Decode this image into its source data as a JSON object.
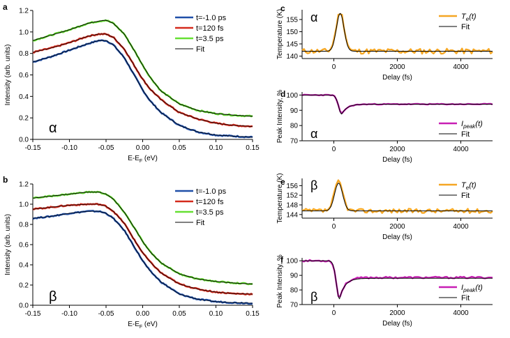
{
  "colors": {
    "blue": "#1f4fa8",
    "red": "#d42a1c",
    "green": "#66e032",
    "black": "#000000",
    "orange": "#f5a623",
    "magenta": "#c81fb4"
  },
  "chart_data": [
    {
      "panel": "a",
      "type": "line",
      "greek": "α",
      "xlabel": "E-EF (eV)",
      "xlabel_main": "E-E",
      "xlabel_sub": "F",
      "xlabel_tail": " (eV)",
      "ylabel": "Intensity (arb. units)",
      "xlim": [
        -0.15,
        0.15
      ],
      "ylim": [
        0,
        1.2
      ],
      "xticks": [
        -0.15,
        -0.1,
        -0.05,
        0.0,
        0.05,
        0.1,
        0.15
      ],
      "xticklabels": [
        "-0.15",
        "-0.10",
        "-0.05",
        "0.00",
        "0.05",
        "0.10",
        "0.15"
      ],
      "yticks": [
        0,
        0.2,
        0.4,
        0.6,
        0.8,
        1.0,
        1.2
      ],
      "yticklabels": [
        "0.0",
        "0.2",
        "0.4",
        "0.6",
        "0.8",
        "1.0",
        "1.2"
      ],
      "legend": [
        "t=-1.0 ps",
        "t=120 fs",
        "t=3.5 ps",
        "Fit"
      ],
      "legend_placement": "top-right",
      "x": [
        -0.15,
        -0.125,
        -0.1,
        -0.075,
        -0.06,
        -0.05,
        -0.04,
        -0.025,
        -0.01,
        0,
        0.01,
        0.025,
        0.05,
        0.075,
        0.1,
        0.125,
        0.15
      ],
      "series": [
        {
          "name": "t=-1.0 ps",
          "color": "blue",
          "values": [
            0.72,
            0.77,
            0.83,
            0.89,
            0.92,
            0.92,
            0.88,
            0.76,
            0.58,
            0.46,
            0.36,
            0.25,
            0.13,
            0.07,
            0.04,
            0.03,
            0.02
          ]
        },
        {
          "name": "t=120 fs",
          "color": "red",
          "values": [
            0.81,
            0.85,
            0.9,
            0.96,
            0.98,
            0.98,
            0.95,
            0.84,
            0.67,
            0.56,
            0.47,
            0.37,
            0.25,
            0.19,
            0.15,
            0.13,
            0.12
          ]
        },
        {
          "name": "t=3.5 ps",
          "color": "green",
          "values": [
            0.92,
            0.97,
            1.02,
            1.08,
            1.1,
            1.11,
            1.08,
            0.98,
            0.81,
            0.69,
            0.58,
            0.45,
            0.33,
            0.27,
            0.24,
            0.225,
            0.215
          ]
        },
        {
          "name": "Fit",
          "color": "black",
          "values": [
            0.92,
            0.97,
            1.02,
            1.08,
            1.1,
            1.11,
            1.08,
            0.98,
            0.81,
            0.69,
            0.58,
            0.45,
            0.33,
            0.27,
            0.24,
            0.225,
            0.215
          ]
        }
      ]
    },
    {
      "panel": "b",
      "type": "line",
      "greek": "β",
      "xlabel": "E-EF (eV)",
      "xlabel_main": "E-E",
      "xlabel_sub": "F",
      "xlabel_tail": " (eV)",
      "ylabel": "Intensity (arb. units)",
      "xlim": [
        -0.15,
        0.15
      ],
      "ylim": [
        0,
        1.2
      ],
      "xticks": [
        -0.15,
        -0.1,
        -0.05,
        0.0,
        0.05,
        0.1,
        0.15
      ],
      "xticklabels": [
        "-0.15",
        "-0.10",
        "-0.05",
        "0.00",
        "0.05",
        "0.10",
        "0.15"
      ],
      "yticks": [
        0,
        0.2,
        0.4,
        0.6,
        0.8,
        1.0,
        1.2
      ],
      "yticklabels": [
        "0.0",
        "0.2",
        "0.4",
        "0.6",
        "0.8",
        "1.0",
        "1.2"
      ],
      "legend": [
        "t=-1.0 ps",
        "t=120 fs",
        "t=3.5 ps",
        "Fit"
      ],
      "legend_placement": "top-right",
      "x": [
        -0.15,
        -0.125,
        -0.1,
        -0.075,
        -0.06,
        -0.05,
        -0.04,
        -0.025,
        -0.01,
        0,
        0.01,
        0.025,
        0.05,
        0.075,
        0.1,
        0.125,
        0.15
      ],
      "series": [
        {
          "name": "t=-1.0 ps",
          "color": "blue",
          "values": [
            0.86,
            0.88,
            0.91,
            0.93,
            0.93,
            0.91,
            0.86,
            0.74,
            0.56,
            0.44,
            0.34,
            0.23,
            0.11,
            0.06,
            0.035,
            0.025,
            0.02
          ]
        },
        {
          "name": "t=120 fs",
          "color": "red",
          "values": [
            0.95,
            0.97,
            0.99,
            1.0,
            1.0,
            0.98,
            0.93,
            0.81,
            0.63,
            0.52,
            0.43,
            0.32,
            0.21,
            0.16,
            0.13,
            0.115,
            0.11
          ]
        },
        {
          "name": "t=3.5 ps",
          "color": "green",
          "values": [
            1.06,
            1.08,
            1.1,
            1.12,
            1.12,
            1.1,
            1.05,
            0.92,
            0.75,
            0.63,
            0.53,
            0.42,
            0.31,
            0.26,
            0.235,
            0.22,
            0.21
          ]
        },
        {
          "name": "Fit",
          "color": "black",
          "values": [
            1.06,
            1.08,
            1.1,
            1.12,
            1.12,
            1.1,
            1.05,
            0.92,
            0.75,
            0.63,
            0.53,
            0.42,
            0.31,
            0.26,
            0.235,
            0.22,
            0.21
          ]
        }
      ]
    },
    {
      "panel": "c",
      "type": "line",
      "greek": "α",
      "xlabel": "Delay (fs)",
      "ylabel": "Temperature (K)",
      "xlim": [
        -1000,
        5000
      ],
      "ylim": [
        139,
        159
      ],
      "xticks": [
        0,
        2000,
        4000
      ],
      "xticklabels": [
        "0",
        "2000",
        "4000"
      ],
      "yticks": [
        140,
        145,
        150,
        155
      ],
      "yticklabels": [
        "140",
        "145",
        "150",
        "155"
      ],
      "legend": [
        "Te(t)",
        "Fit"
      ],
      "legend_main": "T",
      "legend_sub": "e",
      "legend_tail": "(t)",
      "legend_placement": "top-right",
      "data": {
        "color": "orange",
        "baseline": 142,
        "peak": 158,
        "peak_at": 200,
        "width": 180,
        "noise": 1.1,
        "seed": 11
      },
      "fit": {
        "color": "black",
        "baseline": 142,
        "peak": 157.5,
        "peak_at": 200,
        "width": 170
      }
    },
    {
      "panel": "d",
      "type": "line",
      "greek": "α",
      "xlabel": "Delay (fs)",
      "ylabel": "Peak Intensity, %",
      "xlim": [
        -1000,
        5000
      ],
      "ylim": [
        70,
        102
      ],
      "xticks": [
        0,
        2000,
        4000
      ],
      "xticklabels": [
        "0",
        "2000",
        "4000"
      ],
      "yticks": [
        70,
        80,
        90,
        100
      ],
      "yticklabels": [
        "70",
        "80",
        "90",
        "100"
      ],
      "legend": [
        "Ipeak(t)",
        "Fit"
      ],
      "legend_main": "I",
      "legend_sub": "peak",
      "legend_tail": "(t)",
      "legend_placement": "bottom-right",
      "data": {
        "color": "magenta",
        "pre": 100,
        "post": 94,
        "min": 87.5,
        "min_at": 250,
        "noise": 0.3,
        "seed": 23
      },
      "fit": {
        "color": "black",
        "pre": 100,
        "post": 94,
        "min": 87.5,
        "min_at": 250
      }
    },
    {
      "panel": "e",
      "type": "line",
      "greek": "β",
      "xlabel": "Delay (fs)",
      "ylabel": "Temperature (K)",
      "xlim": [
        -1000,
        5000
      ],
      "ylim": [
        142.5,
        159
      ],
      "xticks": [
        0,
        2000,
        4000
      ],
      "xticklabels": [
        "0",
        "2000",
        "4000"
      ],
      "yticks": [
        144,
        148,
        152,
        156
      ],
      "yticklabels": [
        "144",
        "148",
        "152",
        "156"
      ],
      "legend": [
        "Te(t)",
        "Fit"
      ],
      "legend_main": "T",
      "legend_sub": "e",
      "legend_tail": "(t)",
      "legend_placement": "top-right",
      "data": {
        "color": "orange",
        "baseline": 145.5,
        "peak": 157.5,
        "peak_at": 150,
        "width": 190,
        "noise": 0.9,
        "seed": 37
      },
      "fit": {
        "color": "black",
        "baseline": 145.5,
        "peak": 157,
        "peak_at": 150,
        "width": 180
      }
    },
    {
      "panel": "f",
      "type": "line",
      "greek": "β",
      "xlabel": "Delay (fs)",
      "ylabel": "Peak Intensity, %",
      "xlim": [
        -1000,
        5000
      ],
      "ylim": [
        70,
        102
      ],
      "xticks": [
        0,
        2000,
        4000
      ],
      "xticklabels": [
        "0",
        "2000",
        "4000"
      ],
      "yticks": [
        70,
        80,
        90,
        100
      ],
      "yticklabels": [
        "70",
        "80",
        "90",
        "100"
      ],
      "legend": [
        "Ipeak(t)",
        "Fit"
      ],
      "legend_main": "I",
      "legend_sub": "peak",
      "legend_tail": "(t)",
      "legend_placement": "bottom-right",
      "data": {
        "color": "magenta",
        "pre": 100,
        "post": 88.5,
        "min": 74,
        "min_at": 180,
        "noise": 0.6,
        "seed": 53
      },
      "fit": {
        "color": "black",
        "pre": 100,
        "post": 88,
        "min": 74,
        "min_at": 180
      }
    }
  ]
}
